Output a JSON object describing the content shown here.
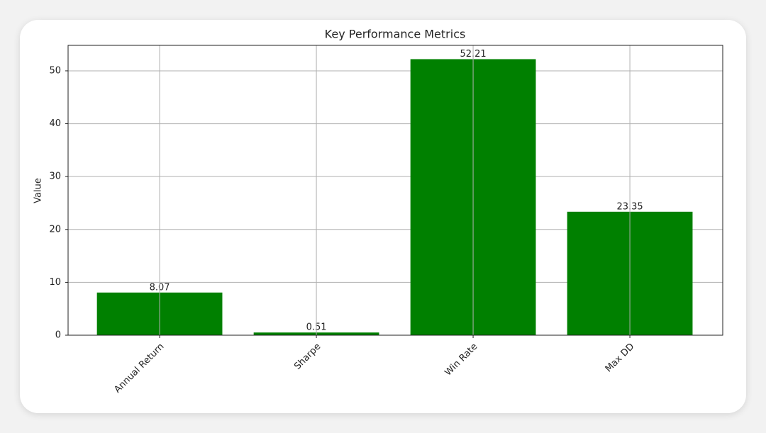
{
  "chart_data": {
    "type": "bar",
    "title": "Key Performance Metrics",
    "y_label": "Value",
    "categories": [
      "Annual Return",
      "Sharpe",
      "Win Rate",
      "Max DD"
    ],
    "values": [
      8.07,
      0.51,
      52.21,
      23.35
    ],
    "color": "#008000",
    "ylim": [
      0,
      54.82
    ],
    "yticks": [
      0,
      10,
      20,
      30,
      40,
      50
    ],
    "grid": true
  }
}
